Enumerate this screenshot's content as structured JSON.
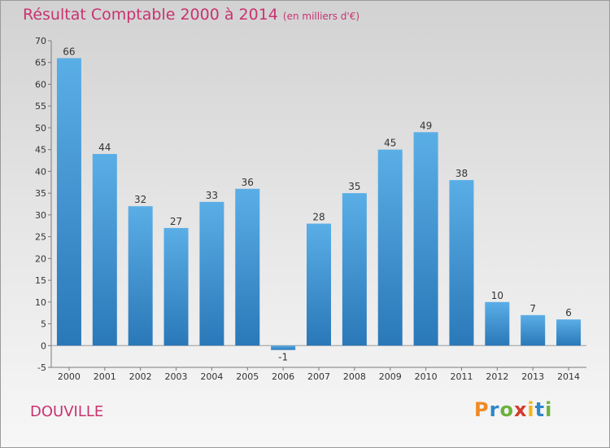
{
  "header": {
    "title": "Résultat Comptable 2000 à 2014",
    "subtitle": "(en milliers d'€)"
  },
  "footer": {
    "commune": "DOUVILLE",
    "logo_text": "Proxiti"
  },
  "colors": {
    "accent": "#c8336f",
    "bar_light": "#5aaee6",
    "bar_dark": "#2a78b8"
  },
  "chart_data": {
    "type": "bar",
    "title": "Résultat Comptable 2000 à 2014",
    "subtitle": "(en milliers d'€)",
    "categories": [
      "2000",
      "2001",
      "2002",
      "2003",
      "2004",
      "2005",
      "2006",
      "2007",
      "2008",
      "2009",
      "2010",
      "2011",
      "2012",
      "2013",
      "2014"
    ],
    "values": [
      66,
      44,
      32,
      27,
      33,
      36,
      -1,
      28,
      35,
      45,
      49,
      38,
      10,
      7,
      6
    ],
    "ylim": [
      -5,
      70
    ],
    "yticks": [
      -5,
      0,
      5,
      10,
      15,
      20,
      25,
      30,
      35,
      40,
      45,
      50,
      55,
      60,
      65,
      70
    ],
    "grid": false,
    "legend": "none"
  }
}
